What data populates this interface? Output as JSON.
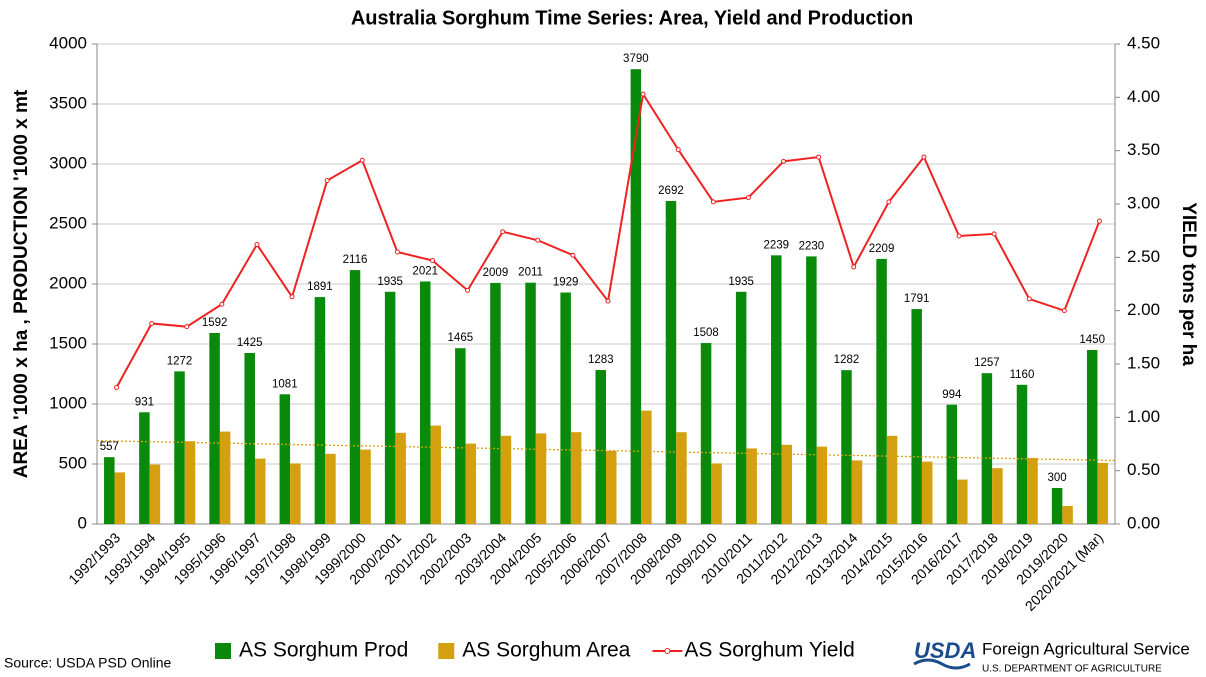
{
  "chart_data": {
    "type": "bar",
    "title": "Australia Sorghum Time Series: Area, Yield and Production",
    "y_label": "AREA  '1000 x ha  , PRODUCTION  '1000 x mt",
    "y2_label": "YIELD tons per ha",
    "categories": [
      "1992/1993",
      "1993/1994",
      "1994/1995",
      "1995/1996",
      "1996/1997",
      "1997/1998",
      "1998/1999",
      "1999/2000",
      "2000/2001",
      "2001/2002",
      "2002/2003",
      "2003/2004",
      "2004/2005",
      "2005/2006",
      "2006/2007",
      "2007/2008",
      "2008/2009",
      "2009/2010",
      "2010/2011",
      "2011/2012",
      "2012/2013",
      "2013/2014",
      "2014/2015",
      "2015/2016",
      "2016/2017",
      "2017/2018",
      "2018/2019",
      "2019/2020",
      "2020/2021 (Mar)"
    ],
    "series": [
      {
        "name": "AS Sorghum Prod",
        "type": "bar",
        "color": "#0a8a0a",
        "show_labels": true,
        "values": [
          557,
          931,
          1272,
          1592,
          1425,
          1081,
          1891,
          2116,
          1935,
          2021,
          1465,
          2009,
          2011,
          1929,
          1283,
          3790,
          2692,
          1508,
          1935,
          2239,
          2230,
          1282,
          2209,
          1791,
          994,
          1257,
          1160,
          300,
          1450
        ]
      },
      {
        "name": "AS Sorghum Area",
        "type": "bar",
        "color": "#d4a010",
        "trendline": true,
        "values": [
          430,
          495,
          690,
          770,
          545,
          505,
          585,
          620,
          760,
          820,
          670,
          735,
          755,
          765,
          610,
          945,
          765,
          505,
          630,
          660,
          645,
          530,
          735,
          520,
          370,
          465,
          550,
          150,
          510
        ]
      },
      {
        "name": "AS Sorghum Yield",
        "type": "line",
        "axis": "y2",
        "color": "#ee2222",
        "values": [
          1.28,
          1.88,
          1.85,
          2.06,
          2.62,
          2.13,
          3.22,
          3.41,
          2.55,
          2.47,
          2.19,
          2.74,
          2.66,
          2.52,
          2.09,
          4.03,
          3.51,
          3.02,
          3.06,
          3.4,
          3.44,
          2.41,
          3.02,
          3.44,
          2.7,
          2.72,
          2.11,
          2.0,
          2.84
        ]
      }
    ],
    "ylim": [
      0,
      4000
    ],
    "yticks": [
      0,
      500,
      1000,
      1500,
      2000,
      2500,
      3000,
      3500,
      4000
    ],
    "y2lim": [
      0,
      4.5
    ],
    "y2ticks": [
      {
        "value": 0,
        "label": "0.00"
      },
      {
        "value": 0.5,
        "label": "0.50"
      },
      {
        "value": 1,
        "label": "1.00"
      },
      {
        "value": 1.5,
        "label": "1.50"
      },
      {
        "value": 2,
        "label": "2.00"
      },
      {
        "value": 2.5,
        "label": "2.50"
      },
      {
        "value": 3,
        "label": "3.00"
      },
      {
        "value": 3.5,
        "label": "3.50"
      },
      {
        "value": 4,
        "label": "4.00"
      },
      {
        "value": 4.5,
        "label": "4.50"
      }
    ],
    "grid": true
  },
  "footer": {
    "source": "Source: USDA PSD Online",
    "logo": "USDA",
    "agency": "Foreign Agricultural Service",
    "department": "U.S. DEPARTMENT OF AGRICULTURE"
  }
}
